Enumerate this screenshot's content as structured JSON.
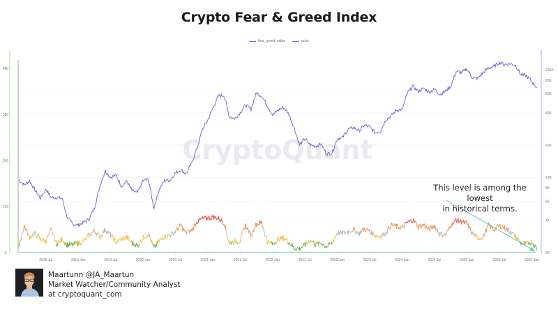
{
  "header": {
    "title": "Crypto Fear & Greed Index"
  },
  "legend": [
    {
      "label": "fear_greed_value",
      "color": "#7b6fd6"
    },
    {
      "label": "price",
      "color": "#7b6fd6"
    }
  ],
  "watermark": "CryptoQuant",
  "annotation": {
    "line1": "This level is among the lowest",
    "line2": "in historical terms."
  },
  "author": {
    "name": "Maartunn @JA_Maartun",
    "role": "Market Watcher/Community Analyst",
    "org": "at cryptoquant_com"
  },
  "colors": {
    "price": "#7b6fd6",
    "extreme_fear": "#6ab04c",
    "fear": "#f0c24b",
    "neutral": "#b8b8c4",
    "greed": "#ef9a5a",
    "extreme_greed": "#e05a4f",
    "baseline": "#8fd6b4",
    "left_axis_line": "#bfe3b9",
    "right_axis_line": "#c9c3ee",
    "arrow": "#5cc9a7"
  },
  "chart_data": {
    "type": "line",
    "title": "Crypto Fear & Greed Index",
    "xlabel": "",
    "ylabel_left": "fear_greed_value",
    "ylabel_right": "price (log)",
    "left_axis": {
      "ticks": [
        0,
        120,
        240,
        360,
        480
      ],
      "labels": [
        "0",
        "120",
        "240",
        "360",
        "480"
      ],
      "range": [
        0,
        480
      ]
    },
    "right_axis": {
      "scale": "log",
      "ticks": [
        2000,
        4000,
        6000,
        8000,
        10000,
        20000,
        40000,
        60000,
        80000,
        100000
      ],
      "labels": [
        "2K",
        "4K",
        "6K",
        "8K",
        "10K",
        "20K",
        "40K",
        "60K",
        "80K",
        "100K"
      ],
      "range": [
        2000,
        120000
      ]
    },
    "x_ticks": [
      "2018 Jul",
      "2019 Jan",
      "2019 Jul",
      "2020 Jan",
      "2020 Jul",
      "2021 Jan",
      "2021 Jul",
      "2022 Jan",
      "2022 Jul",
      "2023 Jan",
      "2023 Jul",
      "2024 Jan",
      "2024 Jul",
      "2025 Jan",
      "2025 Jul",
      "2026 Jan"
    ],
    "x_range": [
      "2018 Feb",
      "2026 Feb"
    ],
    "grid": true,
    "legend_position": "top",
    "series": [
      {
        "name": "price",
        "axis": "right",
        "x": [
          "2018-02",
          "2018-03",
          "2018-04",
          "2018-05",
          "2018-06",
          "2018-07",
          "2018-08",
          "2018-09",
          "2018-10",
          "2018-11",
          "2018-12",
          "2019-01",
          "2019-02",
          "2019-03",
          "2019-04",
          "2019-05",
          "2019-06",
          "2019-07",
          "2019-08",
          "2019-09",
          "2019-10",
          "2019-11",
          "2019-12",
          "2020-01",
          "2020-02",
          "2020-03",
          "2020-04",
          "2020-05",
          "2020-06",
          "2020-07",
          "2020-08",
          "2020-09",
          "2020-10",
          "2020-11",
          "2020-12",
          "2021-01",
          "2021-02",
          "2021-03",
          "2021-04",
          "2021-05",
          "2021-06",
          "2021-07",
          "2021-08",
          "2021-09",
          "2021-10",
          "2021-11",
          "2021-12",
          "2022-01",
          "2022-02",
          "2022-03",
          "2022-04",
          "2022-05",
          "2022-06",
          "2022-07",
          "2022-08",
          "2022-09",
          "2022-10",
          "2022-11",
          "2022-12",
          "2023-01",
          "2023-02",
          "2023-03",
          "2023-04",
          "2023-05",
          "2023-06",
          "2023-07",
          "2023-08",
          "2023-09",
          "2023-10",
          "2023-11",
          "2023-12",
          "2024-01",
          "2024-02",
          "2024-03",
          "2024-04",
          "2024-05",
          "2024-06",
          "2024-07",
          "2024-08",
          "2024-09",
          "2024-10",
          "2024-11",
          "2024-12",
          "2025-01",
          "2025-02",
          "2025-03",
          "2025-04",
          "2025-05",
          "2025-06",
          "2025-07",
          "2025-08",
          "2025-09",
          "2025-10",
          "2025-11",
          "2025-12",
          "2026-01",
          "2026-02"
        ],
        "values": [
          9500,
          8500,
          9300,
          7600,
          6400,
          7800,
          6500,
          6500,
          6400,
          4200,
          3700,
          3600,
          3800,
          4100,
          5200,
          8300,
          11500,
          10000,
          10500,
          8300,
          9200,
          7500,
          7200,
          9300,
          9600,
          5200,
          7700,
          9400,
          9400,
          11000,
          11700,
          10800,
          13500,
          18500,
          28000,
          34000,
          45000,
          57000,
          58000,
          37000,
          35000,
          40000,
          47000,
          43000,
          61000,
          57000,
          47000,
          38000,
          42000,
          45000,
          39000,
          29000,
          20000,
          23000,
          20000,
          19500,
          20500,
          16500,
          16800,
          23000,
          23500,
          28000,
          29000,
          27000,
          30500,
          29500,
          26000,
          27000,
          34500,
          37500,
          42500,
          42500,
          61000,
          70000,
          63000,
          67000,
          62000,
          66000,
          59000,
          63000,
          70000,
          96000,
          94000,
          102000,
          85000,
          83000,
          94000,
          104000,
          107000,
          117000,
          112000,
          114000,
          110000,
          90000,
          88000,
          78000,
          68000
        ]
      },
      {
        "name": "fear_greed_value",
        "axis": "left",
        "x": [
          "2018-02",
          "2018-03",
          "2018-04",
          "2018-05",
          "2018-06",
          "2018-07",
          "2018-08",
          "2018-09",
          "2018-10",
          "2018-11",
          "2018-12",
          "2019-01",
          "2019-02",
          "2019-03",
          "2019-04",
          "2019-05",
          "2019-06",
          "2019-07",
          "2019-08",
          "2019-09",
          "2019-10",
          "2019-11",
          "2019-12",
          "2020-01",
          "2020-02",
          "2020-03",
          "2020-04",
          "2020-05",
          "2020-06",
          "2020-07",
          "2020-08",
          "2020-09",
          "2020-10",
          "2020-11",
          "2020-12",
          "2021-01",
          "2021-02",
          "2021-03",
          "2021-04",
          "2021-05",
          "2021-06",
          "2021-07",
          "2021-08",
          "2021-09",
          "2021-10",
          "2021-11",
          "2021-12",
          "2022-01",
          "2022-02",
          "2022-03",
          "2022-04",
          "2022-05",
          "2022-06",
          "2022-07",
          "2022-08",
          "2022-09",
          "2022-10",
          "2022-11",
          "2022-12",
          "2023-01",
          "2023-02",
          "2023-03",
          "2023-04",
          "2023-05",
          "2023-06",
          "2023-07",
          "2023-08",
          "2023-09",
          "2023-10",
          "2023-11",
          "2023-12",
          "2024-01",
          "2024-02",
          "2024-03",
          "2024-04",
          "2024-05",
          "2024-06",
          "2024-07",
          "2024-08",
          "2024-09",
          "2024-10",
          "2024-11",
          "2024-12",
          "2025-01",
          "2025-02",
          "2025-03",
          "2025-04",
          "2025-05",
          "2025-06",
          "2025-07",
          "2025-08",
          "2025-09",
          "2025-10",
          "2025-11",
          "2025-12",
          "2026-01",
          "2026-02"
        ],
        "values": [
          15,
          70,
          40,
          50,
          35,
          30,
          60,
          22,
          35,
          20,
          20,
          25,
          30,
          45,
          58,
          40,
          60,
          45,
          28,
          35,
          40,
          25,
          18,
          38,
          50,
          12,
          30,
          42,
          45,
          55,
          70,
          50,
          58,
          80,
          88,
          90,
          92,
          90,
          78,
          25,
          30,
          30,
          72,
          45,
          75,
          78,
          30,
          22,
          35,
          38,
          28,
          12,
          10,
          20,
          32,
          22,
          25,
          15,
          25,
          52,
          50,
          55,
          60,
          50,
          62,
          55,
          45,
          42,
          52,
          72,
          68,
          65,
          78,
          85,
          68,
          72,
          60,
          70,
          48,
          45,
          70,
          85,
          80,
          75,
          50,
          38,
          40,
          72,
          60,
          70,
          65,
          55,
          42,
          25,
          22,
          28,
          9
        ]
      }
    ],
    "annotations": [
      {
        "text": "This level is among the lowest in historical terms.",
        "arrow_from": [
          640,
          287
        ],
        "arrow_to": [
          766,
          360
        ]
      }
    ]
  }
}
